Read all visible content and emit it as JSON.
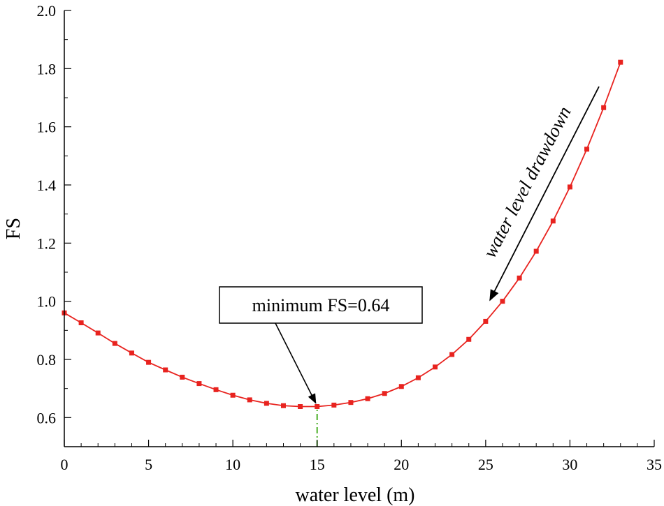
{
  "chart_data": {
    "type": "line",
    "title": "",
    "xlabel": "water level (m)",
    "ylabel": "FS",
    "xlim": [
      0,
      35
    ],
    "ylim": [
      0.5,
      2.0
    ],
    "xticks": [
      0,
      5,
      10,
      15,
      20,
      25,
      30,
      35
    ],
    "yticks": [
      0.6,
      0.8,
      1.0,
      1.2,
      1.4,
      1.6,
      1.8,
      2.0
    ],
    "xtick_labels": [
      "0",
      "5",
      "10",
      "15",
      "20",
      "25",
      "30",
      "35"
    ],
    "ytick_labels": [
      "0.6",
      "0.8",
      "1.0",
      "1.2",
      "1.4",
      "1.6",
      "1.8",
      "2.0"
    ],
    "grid": false,
    "series": [
      {
        "name": "FS",
        "color": "#e8231f",
        "marker": "square",
        "x": [
          0,
          1,
          2,
          3,
          4,
          5,
          6,
          7,
          8,
          9,
          10,
          11,
          12,
          13,
          14,
          15,
          16,
          17,
          18,
          19,
          20,
          21,
          22,
          23,
          24,
          25,
          26,
          27,
          28,
          29,
          30,
          31,
          32,
          33
        ],
        "y": [
          0.96,
          0.926,
          0.891,
          0.855,
          0.822,
          0.79,
          0.764,
          0.739,
          0.717,
          0.696,
          0.677,
          0.661,
          0.649,
          0.641,
          0.638,
          0.638,
          0.643,
          0.652,
          0.665,
          0.683,
          0.707,
          0.737,
          0.774,
          0.817,
          0.869,
          0.931,
          1.0,
          1.08,
          1.172,
          1.276,
          1.393,
          1.523,
          1.666,
          1.822
        ]
      }
    ],
    "annotations": [
      {
        "text": "minimum FS=0.64",
        "points_to": {
          "x": 15,
          "y": 0.638
        }
      },
      {
        "text": "water level drawdown",
        "style": "italic arrow along curve pointing toward decreasing water level"
      }
    ],
    "reference_line": {
      "x": 15,
      "from_y": 0.5,
      "to_y": 0.638,
      "color": "#4caf28",
      "style": "dash-dot"
    }
  }
}
